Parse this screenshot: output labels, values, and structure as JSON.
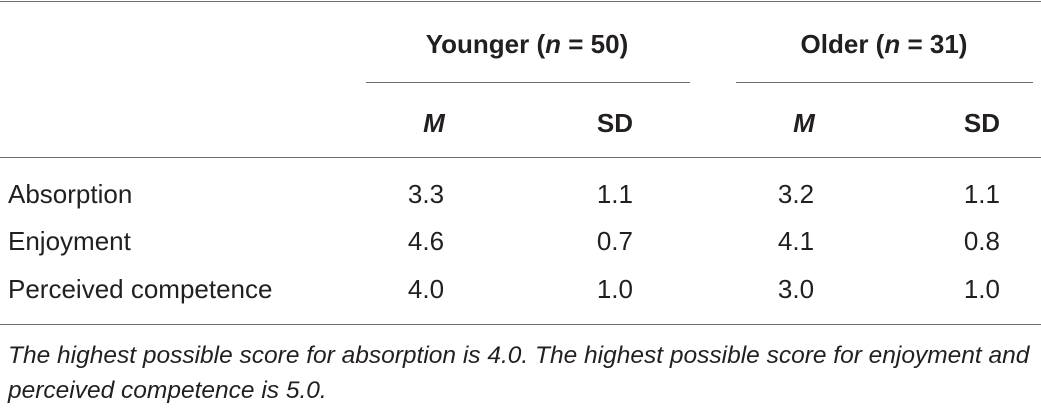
{
  "table": {
    "groups": [
      {
        "label": "Younger",
        "n_label": "n",
        "n_value": " = 50"
      },
      {
        "label": "Older",
        "n_label": "n",
        "n_value": " = 31"
      }
    ],
    "subheaders": [
      "M",
      "SD",
      "M",
      "SD"
    ],
    "rows": [
      {
        "label": "Absorption",
        "values": [
          "3.3",
          "1.1",
          "3.2",
          "1.1"
        ]
      },
      {
        "label": "Enjoyment",
        "values": [
          "4.6",
          "0.7",
          "4.1",
          "0.8"
        ]
      },
      {
        "label": "Perceived competence",
        "values": [
          "4.0",
          "1.0",
          "3.0",
          "1.0"
        ]
      }
    ],
    "footnote": "The highest possible score for absorption is 4.0. The highest possible score for enjoyment and perceived competence is 5.0."
  }
}
